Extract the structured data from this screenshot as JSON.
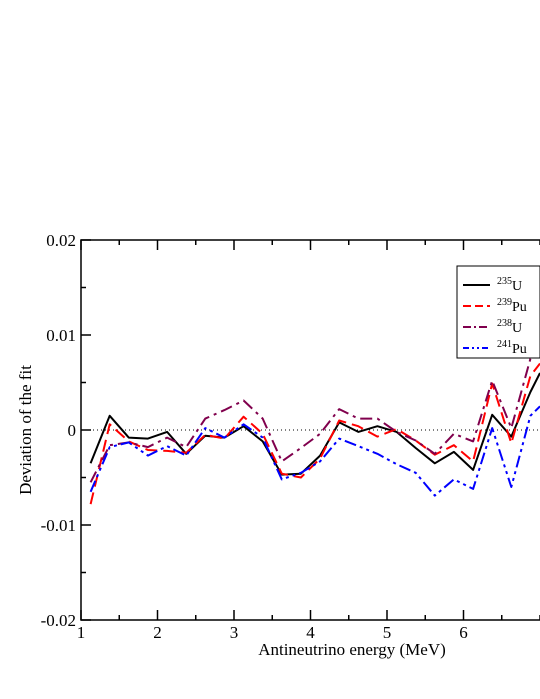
{
  "chart_data": {
    "type": "line",
    "title": "",
    "xlabel": "Antineutrino energy (MeV)",
    "ylabel": "Deviation of the fit",
    "xlim": [
      1,
      7
    ],
    "ylim": [
      -0.02,
      0.02
    ],
    "x_ticks": [
      1,
      2,
      3,
      4,
      5,
      6
    ],
    "x_tick_labels": [
      "1",
      "2",
      "3",
      "4",
      "5",
      "6"
    ],
    "y_ticks": [
      -0.02,
      -0.01,
      0,
      0.01,
      0.02
    ],
    "y_tick_labels": [
      "-0.02",
      "-0.01",
      "0",
      "0.01",
      "0.02"
    ],
    "grid": false,
    "legend_position": "top-right",
    "reference_line": {
      "y": 0,
      "style": "dotted"
    },
    "x": [
      1.125,
      1.375,
      1.625,
      1.875,
      2.125,
      2.375,
      2.625,
      2.875,
      3.125,
      3.375,
      3.625,
      3.875,
      4.125,
      4.375,
      4.625,
      4.875,
      5.125,
      5.375,
      5.625,
      5.875,
      6.125,
      6.375,
      6.625,
      6.875,
      7.0
    ],
    "series": [
      {
        "name_iso": "235",
        "name_el": "U",
        "color": "#000000",
        "dash": "",
        "values": [
          -0.0035,
          0.0015,
          -0.0008,
          -0.0009,
          -0.0002,
          -0.0025,
          -0.0006,
          -0.0008,
          0.0004,
          -0.0012,
          -0.0047,
          -0.0046,
          -0.0027,
          0.0008,
          -0.0002,
          0.0004,
          -0.0002,
          -0.0019,
          -0.0035,
          -0.0023,
          -0.0042,
          0.0016,
          -0.0007,
          0.004,
          0.006
        ]
      },
      {
        "name_iso": "239",
        "name_el": "Pu",
        "color": "#ff0000",
        "dash": "12,6",
        "values": [
          -0.0078,
          0.0006,
          -0.0012,
          -0.0021,
          -0.0022,
          -0.0024,
          -0.0005,
          -0.0009,
          0.0014,
          -0.0004,
          -0.0046,
          -0.005,
          -0.003,
          0.001,
          0.0004,
          -0.0007,
          0.0001,
          -0.0011,
          -0.0026,
          -0.0016,
          -0.0033,
          0.0049,
          -0.0014,
          0.0057,
          0.007
        ]
      },
      {
        "name_iso": "238",
        "name_el": "U",
        "color": "#80004d",
        "dash": "12,5,3,5",
        "values": [
          -0.0055,
          -0.0016,
          -0.0013,
          -0.0018,
          -0.0008,
          -0.0018,
          0.0012,
          0.0021,
          0.0031,
          0.0012,
          -0.0033,
          -0.0019,
          -0.0004,
          0.0022,
          0.0012,
          0.0012,
          -0.0002,
          -0.0011,
          -0.0025,
          -0.0004,
          -0.0012,
          0.0052,
          0.0002,
          0.0075,
          0.0085
        ]
      },
      {
        "name_iso": "241",
        "name_el": "Pu",
        "color": "#0000ff",
        "dash": "12,4,3,4,3,4",
        "values": [
          -0.0065,
          -0.0018,
          -0.0013,
          -0.0027,
          -0.0017,
          -0.0027,
          0.0002,
          -0.0008,
          0.0006,
          -0.0008,
          -0.0052,
          -0.0045,
          -0.0033,
          -0.0009,
          -0.0017,
          -0.0025,
          -0.0036,
          -0.0045,
          -0.0069,
          -0.0052,
          -0.0062,
          0.0002,
          -0.006,
          0.0015,
          0.0025
        ]
      }
    ]
  }
}
